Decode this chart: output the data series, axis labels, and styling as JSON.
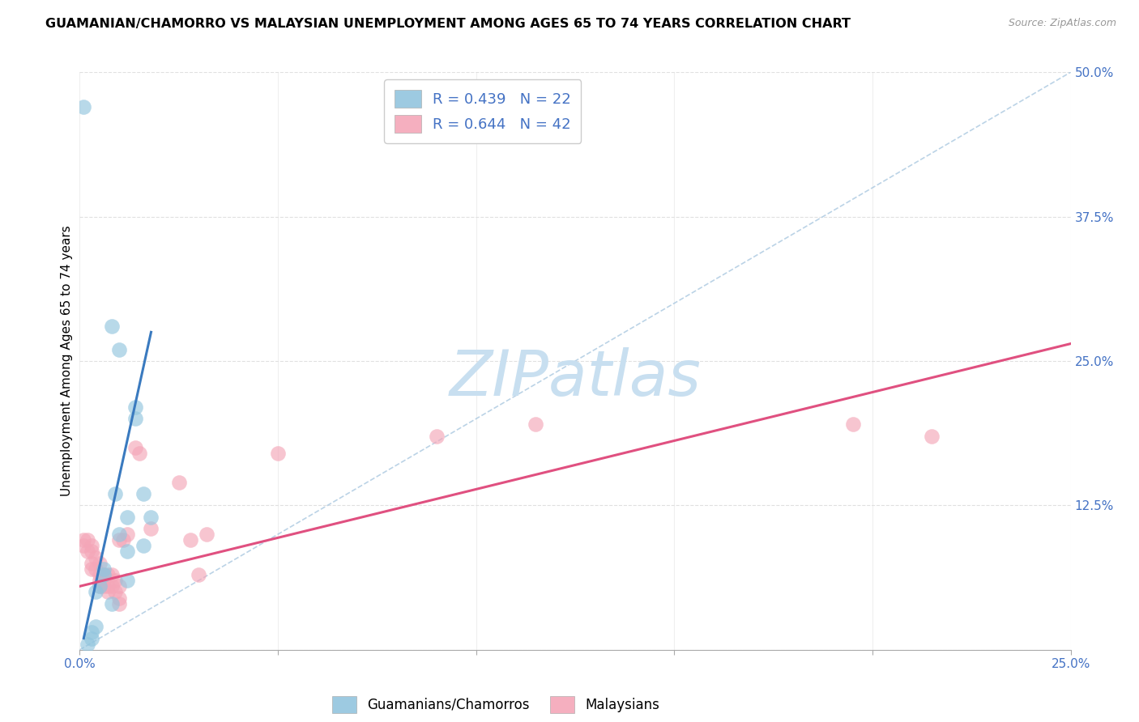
{
  "title": "GUAMANIAN/CHAMORRO VS MALAYSIAN UNEMPLOYMENT AMONG AGES 65 TO 74 YEARS CORRELATION CHART",
  "source": "Source: ZipAtlas.com",
  "ylabel": "Unemployment Among Ages 65 to 74 years",
  "xlim": [
    0,
    0.25
  ],
  "ylim": [
    0,
    0.5
  ],
  "xticks": [
    0.0,
    0.05,
    0.1,
    0.15,
    0.2,
    0.25
  ],
  "xticklabels": [
    "0.0%",
    "",
    "",
    "",
    "",
    "25.0%"
  ],
  "yticks_right": [
    0.0,
    0.125,
    0.25,
    0.375,
    0.5
  ],
  "yticklabels_right": [
    "",
    "12.5%",
    "25.0%",
    "37.5%",
    "50.0%"
  ],
  "legend_label1": "R = 0.439   N = 22",
  "legend_label2": "R = 0.644   N = 42",
  "legend_label_bottom1": "Guamanians/Chamorros",
  "legend_label_bottom2": "Malaysians",
  "blue_color": "#92c5de",
  "pink_color": "#f4a6b8",
  "blue_scatter": [
    [
      0.001,
      0.47
    ],
    [
      0.008,
      0.28
    ],
    [
      0.01,
      0.26
    ],
    [
      0.014,
      0.21
    ],
    [
      0.014,
      0.2
    ],
    [
      0.016,
      0.135
    ],
    [
      0.009,
      0.135
    ],
    [
      0.012,
      0.115
    ],
    [
      0.018,
      0.115
    ],
    [
      0.01,
      0.1
    ],
    [
      0.016,
      0.09
    ],
    [
      0.012,
      0.085
    ],
    [
      0.006,
      0.07
    ],
    [
      0.006,
      0.065
    ],
    [
      0.012,
      0.06
    ],
    [
      0.005,
      0.055
    ],
    [
      0.004,
      0.05
    ],
    [
      0.008,
      0.04
    ],
    [
      0.004,
      0.02
    ],
    [
      0.003,
      0.015
    ],
    [
      0.003,
      0.01
    ],
    [
      0.002,
      0.005
    ]
  ],
  "pink_scatter": [
    [
      0.001,
      0.095
    ],
    [
      0.001,
      0.09
    ],
    [
      0.002,
      0.095
    ],
    [
      0.002,
      0.085
    ],
    [
      0.003,
      0.085
    ],
    [
      0.003,
      0.09
    ],
    [
      0.003,
      0.075
    ],
    [
      0.003,
      0.07
    ],
    [
      0.004,
      0.08
    ],
    [
      0.004,
      0.07
    ],
    [
      0.005,
      0.075
    ],
    [
      0.005,
      0.065
    ],
    [
      0.005,
      0.06
    ],
    [
      0.005,
      0.055
    ],
    [
      0.006,
      0.065
    ],
    [
      0.006,
      0.06
    ],
    [
      0.006,
      0.055
    ],
    [
      0.007,
      0.065
    ],
    [
      0.007,
      0.055
    ],
    [
      0.007,
      0.05
    ],
    [
      0.008,
      0.065
    ],
    [
      0.008,
      0.055
    ],
    [
      0.009,
      0.06
    ],
    [
      0.009,
      0.05
    ],
    [
      0.01,
      0.055
    ],
    [
      0.01,
      0.045
    ],
    [
      0.01,
      0.04
    ],
    [
      0.01,
      0.095
    ],
    [
      0.011,
      0.095
    ],
    [
      0.012,
      0.1
    ],
    [
      0.014,
      0.175
    ],
    [
      0.015,
      0.17
    ],
    [
      0.018,
      0.105
    ],
    [
      0.025,
      0.145
    ],
    [
      0.028,
      0.095
    ],
    [
      0.03,
      0.065
    ],
    [
      0.032,
      0.1
    ],
    [
      0.05,
      0.17
    ],
    [
      0.09,
      0.185
    ],
    [
      0.115,
      0.195
    ],
    [
      0.195,
      0.195
    ],
    [
      0.215,
      0.185
    ]
  ],
  "blue_line_x": [
    0.001,
    0.018
  ],
  "blue_line_y": [
    0.01,
    0.275
  ],
  "pink_line_x": [
    0.0,
    0.25
  ],
  "pink_line_y": [
    0.055,
    0.265
  ],
  "diagonal_line": [
    [
      0.0,
      0.0
    ],
    [
      0.25,
      0.5
    ]
  ],
  "watermark": "ZIPatlas",
  "watermark_color": "#c8dff0",
  "background_color": "#ffffff",
  "grid_color": "#e0e0e0"
}
